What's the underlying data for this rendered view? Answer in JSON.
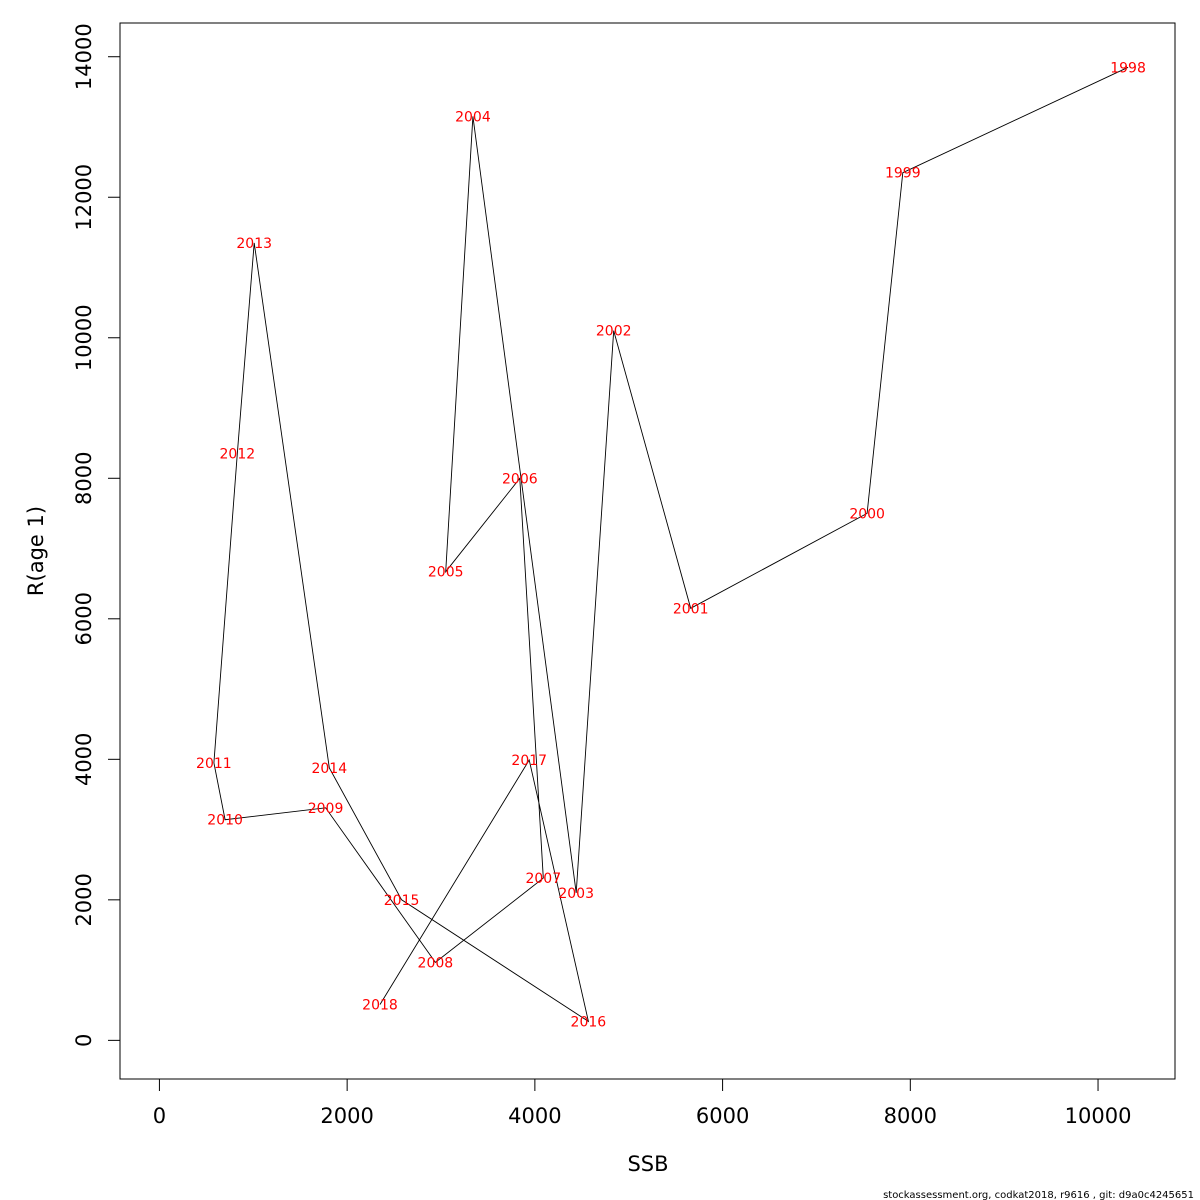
{
  "chart_data": {
    "type": "line",
    "xlabel": "SSB",
    "ylabel": "R(age 1)",
    "xlim": [
      -420,
      10820
    ],
    "ylim": [
      -550,
      14480
    ],
    "xticks": [
      0,
      2000,
      4000,
      6000,
      8000,
      10000
    ],
    "yticks": [
      0,
      2000,
      4000,
      6000,
      8000,
      10000,
      12000,
      14000
    ],
    "xtick_labels": [
      "0",
      "2000",
      "4000",
      "6000",
      "8000",
      "10000"
    ],
    "ytick_labels": [
      "0",
      "2000",
      "4000",
      "6000",
      "8000",
      "10000",
      "12000",
      "14000"
    ],
    "line_color": "#000000",
    "label_color": "#ff0000",
    "grid": false,
    "points": [
      {
        "label": "1998",
        "x": 10320,
        "y": 13850
      },
      {
        "label": "1999",
        "x": 7920,
        "y": 12350
      },
      {
        "label": "2000",
        "x": 7540,
        "y": 7500
      },
      {
        "label": "2001",
        "x": 5660,
        "y": 6150
      },
      {
        "label": "2002",
        "x": 4840,
        "y": 10100
      },
      {
        "label": "2003",
        "x": 4440,
        "y": 2100
      },
      {
        "label": "2004",
        "x": 3340,
        "y": 13150
      },
      {
        "label": "2005",
        "x": 3050,
        "y": 6670
      },
      {
        "label": "2006",
        "x": 3840,
        "y": 8000
      },
      {
        "label": "2007",
        "x": 4090,
        "y": 2310
      },
      {
        "label": "2008",
        "x": 2940,
        "y": 1110
      },
      {
        "label": "2009",
        "x": 1770,
        "y": 3310
      },
      {
        "label": "2010",
        "x": 700,
        "y": 3140
      },
      {
        "label": "2011",
        "x": 580,
        "y": 3950
      },
      {
        "label": "2012",
        "x": 830,
        "y": 8350
      },
      {
        "label": "2013",
        "x": 1010,
        "y": 11350
      },
      {
        "label": "2014",
        "x": 1810,
        "y": 3880
      },
      {
        "label": "2015",
        "x": 2580,
        "y": 2000
      },
      {
        "label": "2016",
        "x": 4570,
        "y": 270
      },
      {
        "label": "2017",
        "x": 3940,
        "y": 3990
      },
      {
        "label": "2018",
        "x": 2350,
        "y": 510
      }
    ]
  },
  "footer": "stockassessment.org, codkat2018, r9616 , git: d9a0c4245651"
}
